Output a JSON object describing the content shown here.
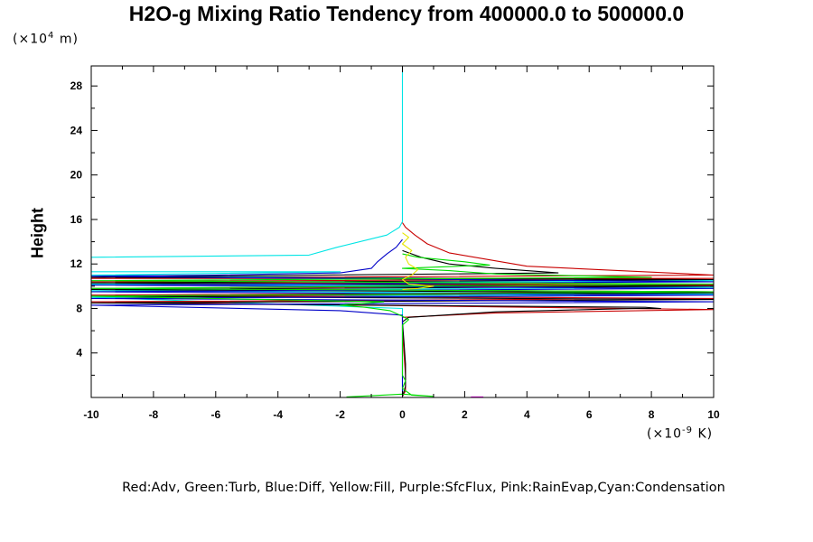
{
  "chart_data": {
    "type": "line",
    "title": "H2O-g Mixing Ratio Tendency from 400000.0 to 500000.0",
    "ylabel": "Height",
    "y_unit_prefix": "(×10",
    "y_unit_exp": "4",
    "y_unit_suffix": " m)",
    "x_unit_prefix": "(×10",
    "x_unit_exp": "-9",
    "x_unit_suffix": " K)",
    "legend_text": "Red:Adv, Green:Turb, Blue:Diff, Yellow:Fill, Purple:SfcFlux, Pink:RainEvap,Cyan:Condensation",
    "xlim": [
      -10,
      10
    ],
    "ylim": [
      0,
      29.8
    ],
    "x_ticks": [
      -10,
      -8,
      -6,
      -4,
      -2,
      0,
      2,
      4,
      6,
      8,
      10
    ],
    "y_ticks": [
      4,
      8,
      12,
      16,
      20,
      24,
      28
    ],
    "x_tick_labels": [
      "-10",
      "-8",
      "-6",
      "-4",
      "-2",
      "0",
      "2",
      "4",
      "6",
      "8",
      "10"
    ],
    "y_tick_labels": [
      "4",
      "8",
      "12",
      "16",
      "20",
      "24",
      "28"
    ],
    "series": [
      {
        "color": "#00e5e5",
        "points": [
          [
            0,
            0.1
          ],
          [
            0,
            2
          ],
          [
            0,
            4
          ],
          [
            0,
            6
          ],
          [
            0,
            8
          ],
          [
            -10,
            9.0
          ],
          [
            10,
            9.3
          ],
          [
            -10,
            9.6
          ],
          [
            10,
            9.9
          ],
          [
            -10,
            10.2
          ],
          [
            10,
            10.5
          ],
          [
            -10,
            11.0
          ],
          [
            -2,
            11.3
          ],
          [
            -10,
            11.3
          ],
          [
            -10,
            12.6
          ],
          [
            -3,
            12.8
          ],
          [
            -2.1,
            13.5
          ],
          [
            -0.5,
            14.6
          ],
          [
            -0.1,
            15.3
          ],
          [
            0,
            15.8
          ],
          [
            0,
            20
          ],
          [
            0,
            25
          ],
          [
            0,
            29.8
          ]
        ]
      },
      {
        "color": "#c80000",
        "points": [
          [
            0,
            0.1
          ],
          [
            0.1,
            0.6
          ],
          [
            0.1,
            2
          ],
          [
            0.05,
            4
          ],
          [
            0,
            6
          ],
          [
            0,
            7.2
          ],
          [
            3,
            7.6
          ],
          [
            10,
            7.9
          ],
          [
            -10,
            8.6
          ],
          [
            10,
            8.9
          ],
          [
            -10,
            9.2
          ],
          [
            10,
            9.5
          ],
          [
            -10,
            9.8
          ],
          [
            10,
            10.1
          ],
          [
            -10,
            10.4
          ],
          [
            10,
            10.7
          ],
          [
            -10,
            10.7
          ],
          [
            10,
            11.0
          ],
          [
            4,
            11.8
          ],
          [
            1.5,
            13.0
          ],
          [
            0.8,
            13.8
          ],
          [
            0.4,
            14.6
          ],
          [
            0.1,
            15.3
          ],
          [
            0,
            15.7
          ]
        ]
      },
      {
        "color": "#000000",
        "points": [
          [
            0,
            0.1
          ],
          [
            0.1,
            1
          ],
          [
            0.1,
            3
          ],
          [
            0.05,
            5
          ],
          [
            0,
            6.8
          ],
          [
            0.2,
            7.2
          ],
          [
            3,
            7.7
          ],
          [
            6,
            7.9
          ],
          [
            7.5,
            8.0
          ],
          [
            8.3,
            8.0
          ],
          [
            7.8,
            8.1
          ],
          [
            -10,
            8.5
          ],
          [
            10,
            8.8
          ],
          [
            -10,
            9.1
          ],
          [
            10,
            9.4
          ],
          [
            -10,
            9.7
          ],
          [
            10,
            10.0
          ],
          [
            -10,
            10.3
          ],
          [
            10,
            10.6
          ],
          [
            -10,
            10.8
          ],
          [
            5,
            11.2
          ],
          [
            3,
            11.6
          ],
          [
            1.5,
            12.0
          ],
          [
            0.6,
            12.6
          ],
          [
            0.2,
            13.0
          ],
          [
            0,
            13.2
          ]
        ]
      },
      {
        "color": "#0000c8",
        "points": [
          [
            0,
            0.1
          ],
          [
            0,
            1
          ],
          [
            0,
            3
          ],
          [
            0,
            6
          ],
          [
            0,
            7.4
          ],
          [
            -2,
            7.8
          ],
          [
            -10,
            8.3
          ],
          [
            10,
            8.6
          ],
          [
            -10,
            8.9
          ],
          [
            10,
            9.2
          ],
          [
            -10,
            9.5
          ],
          [
            10,
            9.8
          ],
          [
            -10,
            10.1
          ],
          [
            10,
            10.4
          ],
          [
            -10,
            10.9
          ],
          [
            -6,
            11.0
          ],
          [
            -2,
            11.2
          ],
          [
            -1,
            11.6
          ],
          [
            -0.8,
            12.2
          ],
          [
            -0.5,
            12.9
          ],
          [
            -0.2,
            13.5
          ],
          [
            0,
            14.2
          ]
        ]
      },
      {
        "color": "#00dd00",
        "points": [
          [
            -1.8,
            0.05
          ],
          [
            0,
            0.3
          ],
          [
            0.5,
            0.2
          ],
          [
            1,
            0.1
          ],
          [
            0.3,
            0.2
          ],
          [
            0,
            0.8
          ],
          [
            0.1,
            1.5
          ],
          [
            0,
            2.0
          ],
          [
            0,
            6.5
          ],
          [
            0.2,
            7.0
          ],
          [
            0,
            7.3
          ],
          [
            -0.4,
            7.8
          ],
          [
            -1.2,
            8.1
          ],
          [
            -2,
            8.3
          ],
          [
            -0.6,
            8.6
          ],
          [
            -10,
            9.1
          ],
          [
            10,
            9.5
          ],
          [
            -10,
            9.8
          ],
          [
            10,
            10.2
          ],
          [
            -10,
            10.5
          ],
          [
            8,
            10.8
          ],
          [
            3,
            11.1
          ],
          [
            1.5,
            11.4
          ],
          [
            0,
            11.6
          ],
          [
            2.8,
            11.9
          ],
          [
            2,
            12.2
          ],
          [
            0.5,
            12.6
          ],
          [
            0,
            12.9
          ]
        ]
      },
      {
        "color": "#e6e600",
        "points": [
          [
            0,
            9.7
          ],
          [
            0.5,
            9.8
          ],
          [
            1,
            10.0
          ],
          [
            0.2,
            10.2
          ],
          [
            0,
            10.6
          ],
          [
            0.3,
            11.0
          ],
          [
            0.5,
            11.5
          ],
          [
            0.2,
            12.0
          ],
          [
            0.1,
            12.6
          ],
          [
            0.3,
            13.2
          ],
          [
            0,
            13.8
          ],
          [
            0.2,
            14.4
          ],
          [
            0,
            14.8
          ]
        ]
      },
      {
        "color": "#ff00ff",
        "points": [
          [
            2.2,
            0.05
          ],
          [
            2.6,
            0.05
          ]
        ]
      }
    ]
  }
}
